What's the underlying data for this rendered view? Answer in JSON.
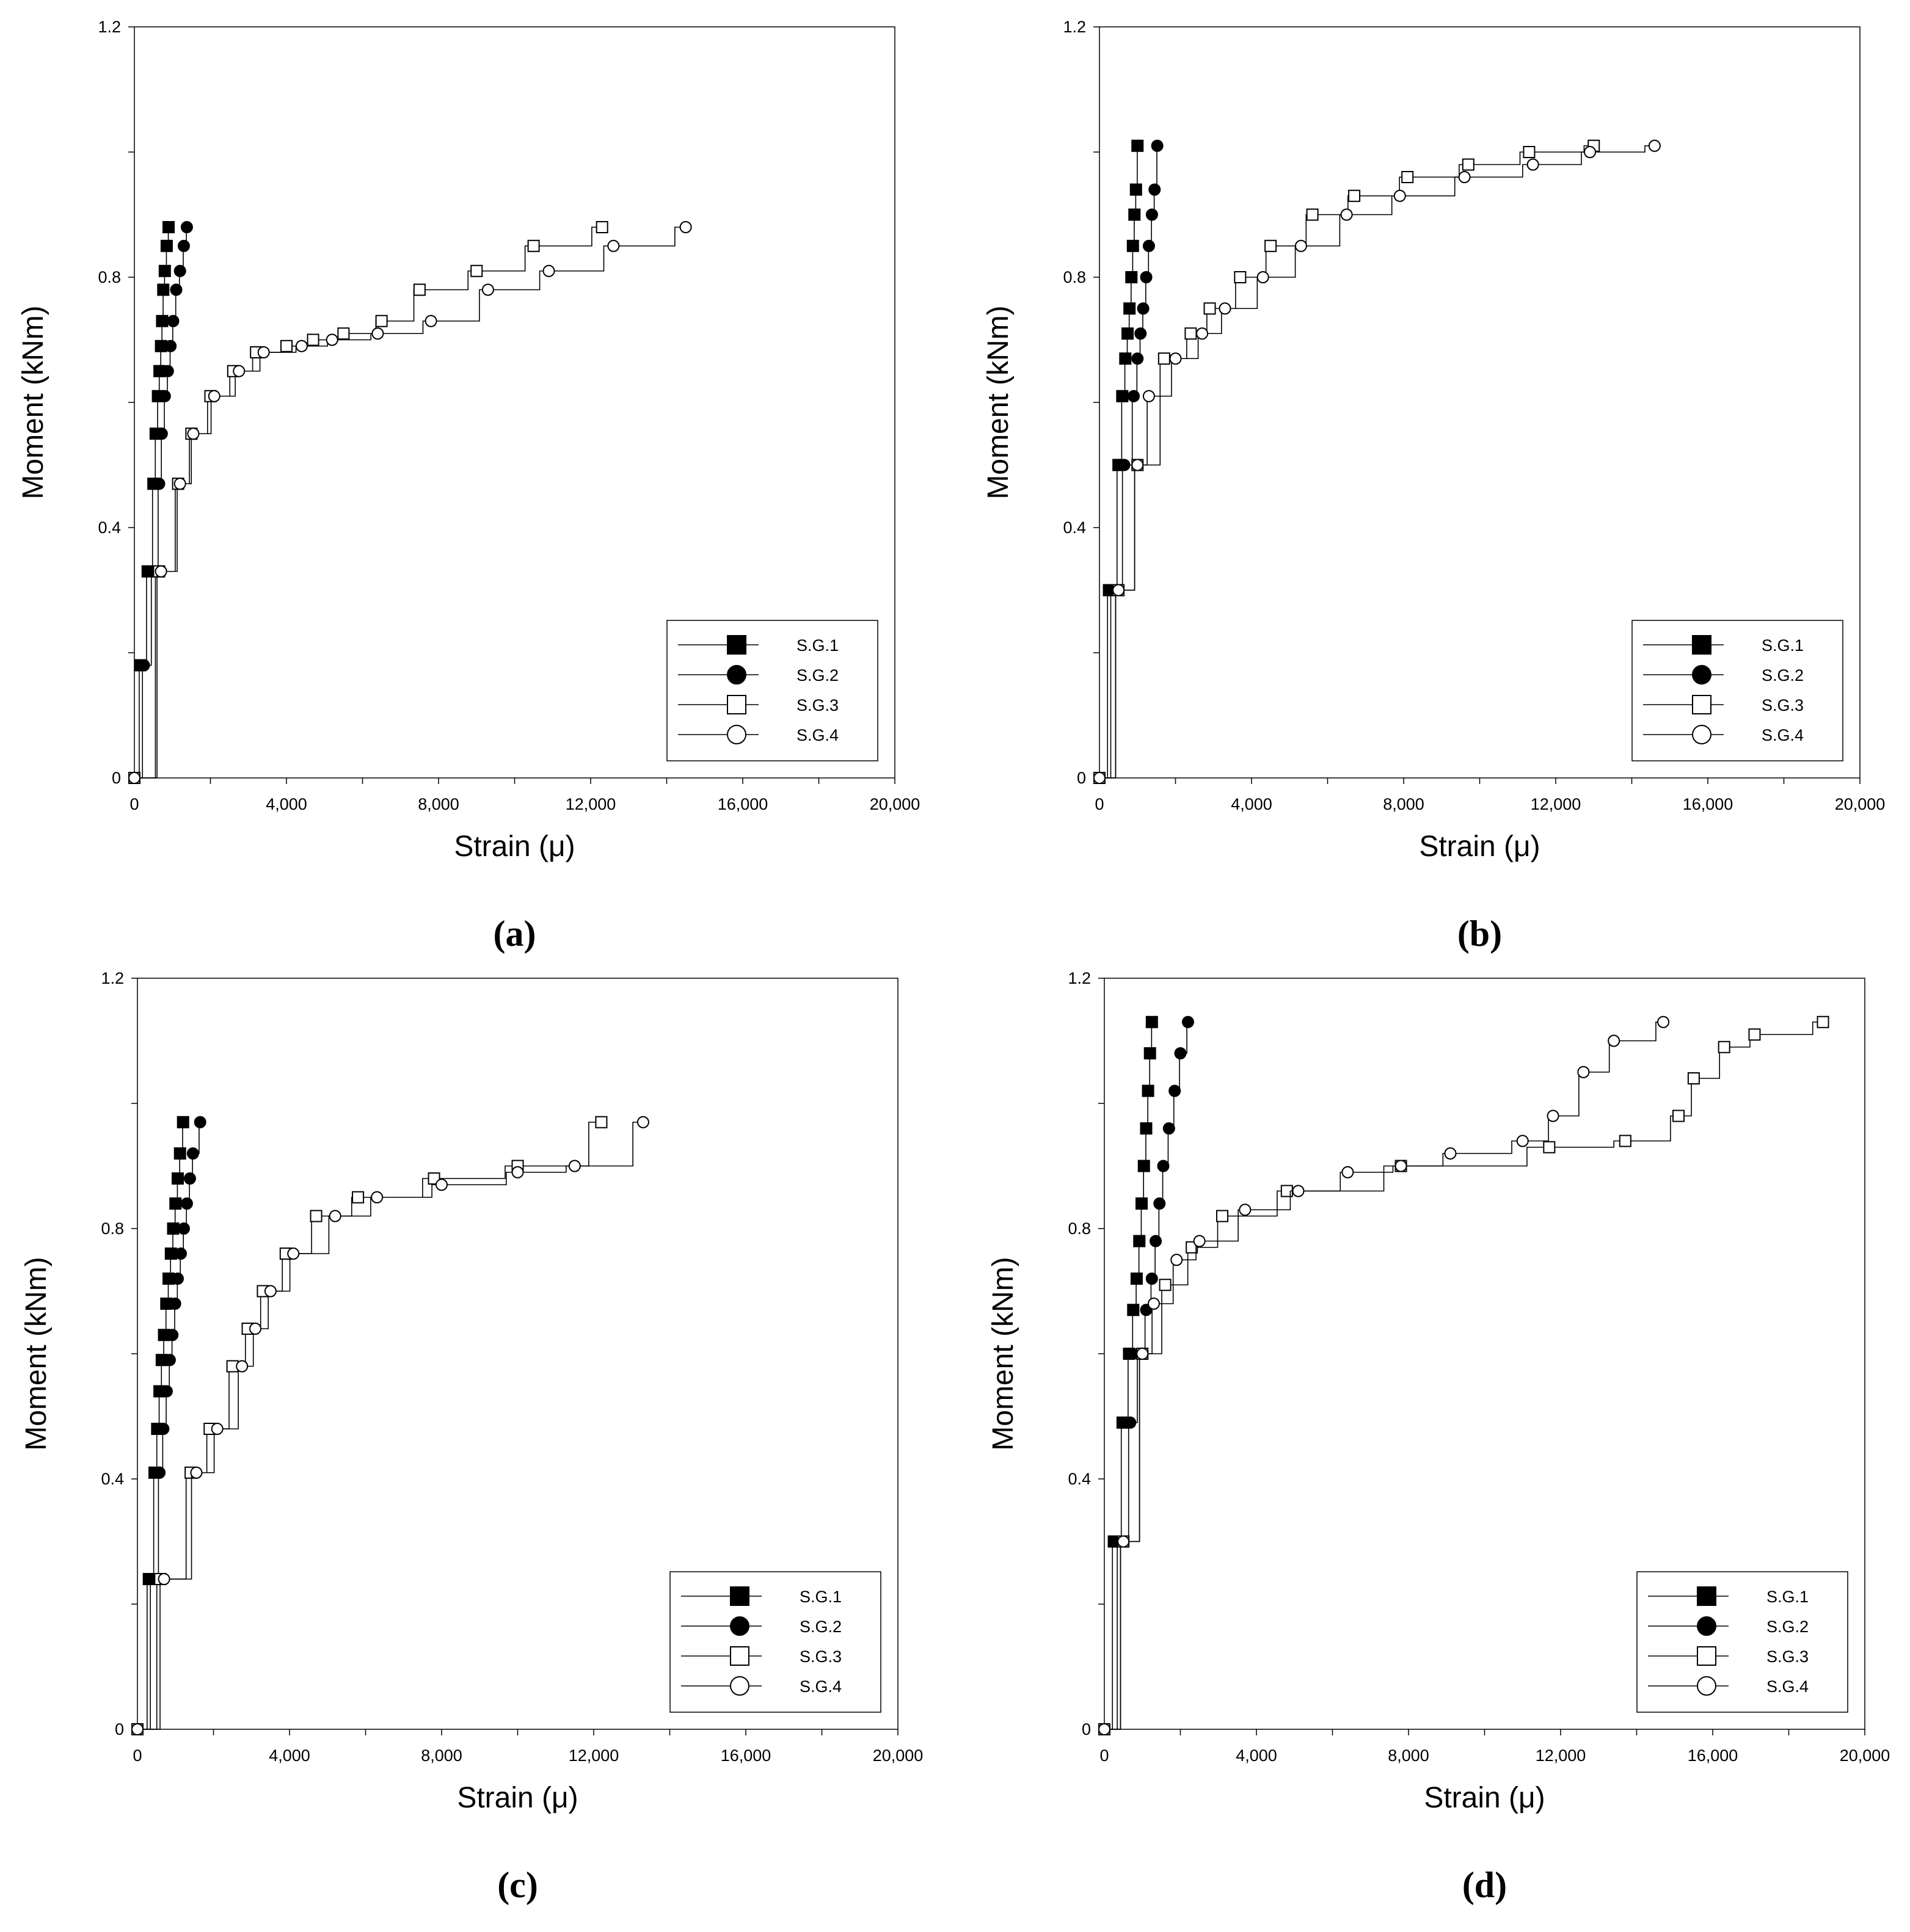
{
  "figure": {
    "panel_labels_note": "Four moment-strain panels"
  },
  "chart_data": [
    {
      "type": "line",
      "panel_label": "(a)",
      "xlabel": "Strain (μ)",
      "ylabel": "Moment (kNm)",
      "xlim": [
        0,
        20000
      ],
      "ylim": [
        0,
        1.2
      ],
      "xticks": [
        0,
        4000,
        8000,
        12000,
        16000,
        20000
      ],
      "xtick_labels": [
        "0",
        "4,000",
        "8,000",
        "12,000",
        "16,000",
        "20,000"
      ],
      "yticks": [
        0,
        0.4,
        0.8,
        1.2
      ],
      "ytick_labels": [
        "0",
        "0.4",
        "0.8",
        "1.2"
      ],
      "legend_position": "bottom-right",
      "series": [
        {
          "name": "S.G.1",
          "marker": "filled-square",
          "x": [
            0,
            150,
            350,
            500,
            560,
            620,
            660,
            700,
            730,
            760,
            800,
            850,
            900
          ],
          "y": [
            0,
            0.18,
            0.33,
            0.47,
            0.55,
            0.61,
            0.65,
            0.69,
            0.73,
            0.78,
            0.81,
            0.85,
            0.88
          ]
        },
        {
          "name": "S.G.2",
          "marker": "filled-circle",
          "x": [
            0,
            250,
            480,
            650,
            720,
            800,
            880,
            950,
            1020,
            1100,
            1200,
            1300,
            1380
          ],
          "y": [
            0,
            0.18,
            0.33,
            0.47,
            0.55,
            0.61,
            0.65,
            0.69,
            0.73,
            0.78,
            0.81,
            0.85,
            0.88
          ]
        },
        {
          "name": "S.G.3",
          "marker": "open-square",
          "x": [
            0,
            650,
            1150,
            1500,
            2000,
            2600,
            3200,
            4000,
            4700,
            5500,
            6500,
            7500,
            9000,
            10500,
            12300
          ],
          "y": [
            0,
            0.33,
            0.47,
            0.55,
            0.61,
            0.65,
            0.68,
            0.69,
            0.7,
            0.71,
            0.73,
            0.78,
            0.81,
            0.85,
            0.88
          ]
        },
        {
          "name": "S.G.4",
          "marker": "open-circle",
          "x": [
            0,
            700,
            1200,
            1550,
            2100,
            2750,
            3400,
            4400,
            5200,
            6400,
            7800,
            9300,
            10900,
            12600,
            14500
          ],
          "y": [
            0,
            0.33,
            0.47,
            0.55,
            0.61,
            0.65,
            0.68,
            0.69,
            0.7,
            0.71,
            0.73,
            0.78,
            0.81,
            0.85,
            0.88
          ]
        }
      ]
    },
    {
      "type": "line",
      "panel_label": "(b)",
      "xlabel": "Strain (μ)",
      "ylabel": "Moment (kNm)",
      "xlim": [
        0,
        20000
      ],
      "ylim": [
        0,
        1.2
      ],
      "xticks": [
        0,
        4000,
        8000,
        12000,
        16000,
        20000
      ],
      "xtick_labels": [
        "0",
        "4,000",
        "8,000",
        "12,000",
        "16,000",
        "20,000"
      ],
      "yticks": [
        0,
        0.4,
        0.8,
        1.2
      ],
      "ytick_labels": [
        "0",
        "0.4",
        "0.8",
        "1.2"
      ],
      "legend_position": "bottom-right",
      "series": [
        {
          "name": "S.G.1",
          "marker": "filled-square",
          "x": [
            0,
            250,
            500,
            600,
            680,
            740,
            790,
            840,
            880,
            920,
            960,
            1000
          ],
          "y": [
            0,
            0.3,
            0.5,
            0.61,
            0.67,
            0.71,
            0.75,
            0.8,
            0.85,
            0.9,
            0.94,
            1.01
          ]
        },
        {
          "name": "S.G.2",
          "marker": "filled-circle",
          "x": [
            0,
            350,
            650,
            900,
            1000,
            1080,
            1150,
            1230,
            1300,
            1380,
            1450,
            1520
          ],
          "y": [
            0,
            0.3,
            0.5,
            0.61,
            0.67,
            0.71,
            0.75,
            0.8,
            0.85,
            0.9,
            0.94,
            1.01
          ]
        },
        {
          "name": "S.G.3",
          "marker": "open-square",
          "x": [
            0,
            500,
            1000,
            1700,
            2400,
            2900,
            3700,
            4500,
            5600,
            6700,
            8100,
            9700,
            11300,
            13000
          ],
          "y": [
            0,
            0.3,
            0.5,
            0.67,
            0.71,
            0.75,
            0.8,
            0.85,
            0.9,
            0.93,
            0.96,
            0.98,
            1.0,
            1.01
          ]
        },
        {
          "name": "S.G.4",
          "marker": "open-circle",
          "x": [
            0,
            500,
            1000,
            1300,
            2000,
            2700,
            3300,
            4300,
            5300,
            6500,
            7900,
            9600,
            11400,
            12900,
            14600
          ],
          "y": [
            0,
            0.3,
            0.5,
            0.61,
            0.67,
            0.71,
            0.75,
            0.8,
            0.85,
            0.9,
            0.93,
            0.96,
            0.98,
            1.0,
            1.01
          ]
        }
      ]
    },
    {
      "type": "line",
      "panel_label": "(c)",
      "xlabel": "Strain (μ)",
      "ylabel": "Moment (kNm)",
      "xlim": [
        0,
        20000
      ],
      "ylim": [
        0,
        1.2
      ],
      "xticks": [
        0,
        4000,
        8000,
        12000,
        16000,
        20000
      ],
      "xtick_labels": [
        "0",
        "4,000",
        "8,000",
        "12,000",
        "16,000",
        "20,000"
      ],
      "yticks": [
        0,
        0.4,
        0.8,
        1.2
      ],
      "ytick_labels": [
        "0",
        "0.4",
        "0.8",
        "1.2"
      ],
      "legend_position": "bottom-right",
      "series": [
        {
          "name": "S.G.1",
          "marker": "filled-square",
          "x": [
            0,
            300,
            450,
            520,
            580,
            640,
            700,
            760,
            820,
            880,
            940,
            1000,
            1060,
            1120,
            1200
          ],
          "y": [
            0,
            0.24,
            0.41,
            0.48,
            0.54,
            0.59,
            0.63,
            0.68,
            0.72,
            0.76,
            0.8,
            0.84,
            0.88,
            0.92,
            0.97
          ]
        },
        {
          "name": "S.G.2",
          "marker": "filled-circle",
          "x": [
            0,
            400,
            580,
            680,
            770,
            850,
            920,
            990,
            1060,
            1140,
            1220,
            1300,
            1380,
            1460,
            1650
          ],
          "y": [
            0,
            0.24,
            0.41,
            0.48,
            0.54,
            0.59,
            0.63,
            0.68,
            0.72,
            0.76,
            0.8,
            0.84,
            0.88,
            0.92,
            0.97
          ]
        },
        {
          "name": "S.G.3",
          "marker": "open-square",
          "x": [
            0,
            600,
            1400,
            1900,
            2500,
            2900,
            3300,
            3900,
            4700,
            5800,
            7800,
            10000,
            12200
          ],
          "y": [
            0,
            0.24,
            0.41,
            0.48,
            0.58,
            0.64,
            0.7,
            0.76,
            0.82,
            0.85,
            0.88,
            0.9,
            0.97
          ]
        },
        {
          "name": "S.G.4",
          "marker": "open-circle",
          "x": [
            0,
            700,
            1550,
            2100,
            2750,
            3100,
            3500,
            4100,
            5200,
            6300,
            8000,
            10000,
            11500,
            13300
          ],
          "y": [
            0,
            0.24,
            0.41,
            0.48,
            0.58,
            0.64,
            0.7,
            0.76,
            0.82,
            0.85,
            0.87,
            0.89,
            0.9,
            0.97
          ]
        }
      ]
    },
    {
      "type": "line",
      "panel_label": "(d)",
      "xlabel": "Strain (μ)",
      "ylabel": "Moment (kNm)",
      "xlim": [
        0,
        20000
      ],
      "ylim": [
        0,
        1.2
      ],
      "xticks": [
        0,
        4000,
        8000,
        12000,
        16000,
        20000
      ],
      "xtick_labels": [
        "0",
        "4,000",
        "8,000",
        "12,000",
        "16,000",
        "20,000"
      ],
      "yticks": [
        0,
        0.4,
        0.8,
        1.2
      ],
      "ytick_labels": [
        "0",
        "0.4",
        "0.8",
        "1.2"
      ],
      "legend_position": "bottom-right",
      "series": [
        {
          "name": "S.G.1",
          "marker": "filled-square",
          "x": [
            0,
            250,
            480,
            650,
            760,
            850,
            920,
            980,
            1040,
            1100,
            1150,
            1200,
            1250
          ],
          "y": [
            0,
            0.3,
            0.49,
            0.6,
            0.67,
            0.72,
            0.78,
            0.84,
            0.9,
            0.96,
            1.02,
            1.08,
            1.13
          ]
        },
        {
          "name": "S.G.2",
          "marker": "filled-circle",
          "x": [
            0,
            400,
            680,
            900,
            1100,
            1250,
            1350,
            1450,
            1550,
            1700,
            1850,
            2000,
            2200
          ],
          "y": [
            0,
            0.3,
            0.49,
            0.6,
            0.67,
            0.72,
            0.78,
            0.84,
            0.9,
            0.96,
            1.02,
            1.08,
            1.13
          ]
        },
        {
          "name": "S.G.3",
          "marker": "open-square",
          "x": [
            0,
            500,
            1000,
            1600,
            2300,
            3100,
            4800,
            7800,
            11700,
            13700,
            15100,
            15500,
            16300,
            17100,
            18900
          ],
          "y": [
            0,
            0.3,
            0.6,
            0.71,
            0.77,
            0.82,
            0.86,
            0.9,
            0.93,
            0.94,
            0.98,
            1.04,
            1.09,
            1.11,
            1.13
          ]
        },
        {
          "name": "S.G.4",
          "marker": "open-circle",
          "x": [
            0,
            500,
            1000,
            1300,
            1900,
            2500,
            3700,
            5100,
            6400,
            7800,
            9100,
            11000,
            11800,
            12600,
            13400,
            14700
          ],
          "y": [
            0,
            0.3,
            0.6,
            0.68,
            0.75,
            0.78,
            0.83,
            0.86,
            0.89,
            0.9,
            0.92,
            0.94,
            0.98,
            1.05,
            1.1,
            1.13
          ]
        }
      ]
    }
  ]
}
